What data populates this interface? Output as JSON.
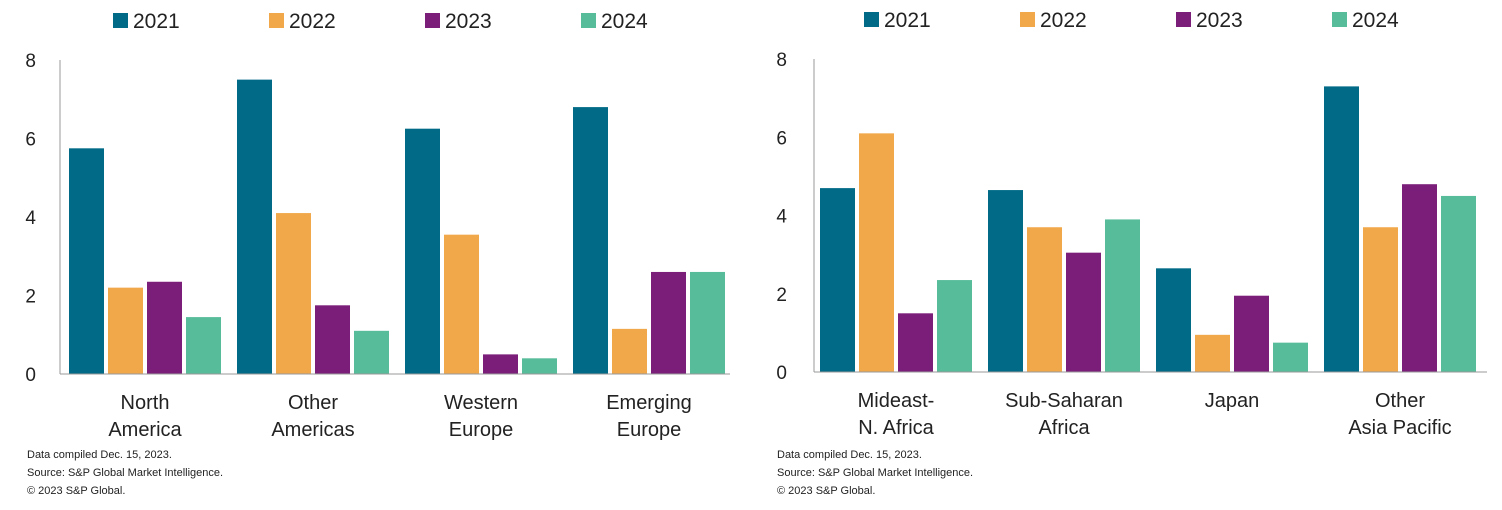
{
  "chart_data": [
    {
      "type": "bar",
      "categories": [
        [
          "North",
          "America"
        ],
        [
          "Other",
          "Americas"
        ],
        [
          "Western",
          "Europe"
        ],
        [
          "Emerging",
          "Europe"
        ]
      ],
      "series": [
        {
          "name": "2021",
          "color": "#006a87",
          "values": [
            5.75,
            7.5,
            6.25,
            6.8
          ]
        },
        {
          "name": "2022",
          "color": "#f0a84a",
          "values": [
            2.2,
            4.1,
            3.55,
            1.15
          ]
        },
        {
          "name": "2023",
          "color": "#7b1e7a",
          "values": [
            2.35,
            1.75,
            0.5,
            2.6
          ]
        },
        {
          "name": "2024",
          "color": "#57bc9a",
          "values": [
            1.45,
            1.1,
            0.4,
            2.6
          ]
        }
      ],
      "yticks": [
        "0",
        "2",
        "4",
        "6",
        "8"
      ],
      "ylim": [
        0,
        8
      ],
      "legend": "top",
      "grid": false,
      "footnotes": [
        "Data compiled Dec. 15, 2023.",
        "Source: S&P Global Market Intelligence.",
        "© 2023 S&P Global."
      ]
    },
    {
      "type": "bar",
      "categories": [
        [
          "Mideast-",
          "N. Africa"
        ],
        [
          "Sub-Saharan",
          "Africa"
        ],
        [
          "Japan"
        ],
        [
          "Other",
          "Asia Pacific"
        ]
      ],
      "series": [
        {
          "name": "2021",
          "color": "#006a87",
          "values": [
            4.7,
            4.65,
            2.65,
            7.3
          ]
        },
        {
          "name": "2022",
          "color": "#f0a84a",
          "values": [
            6.1,
            3.7,
            0.95,
            3.7
          ]
        },
        {
          "name": "2023",
          "color": "#7b1e7a",
          "values": [
            1.5,
            3.05,
            1.95,
            4.8
          ]
        },
        {
          "name": "2024",
          "color": "#57bc9a",
          "values": [
            2.35,
            3.9,
            0.75,
            4.5
          ]
        }
      ],
      "yticks": [
        "0",
        "2",
        "4",
        "6",
        "8"
      ],
      "ylim": [
        0,
        8
      ],
      "legend": "top",
      "grid": false,
      "footnotes": [
        "Data compiled Dec. 15, 2023.",
        "Source: S&P Global Market Intelligence.",
        "© 2023 S&P Global."
      ]
    }
  ]
}
